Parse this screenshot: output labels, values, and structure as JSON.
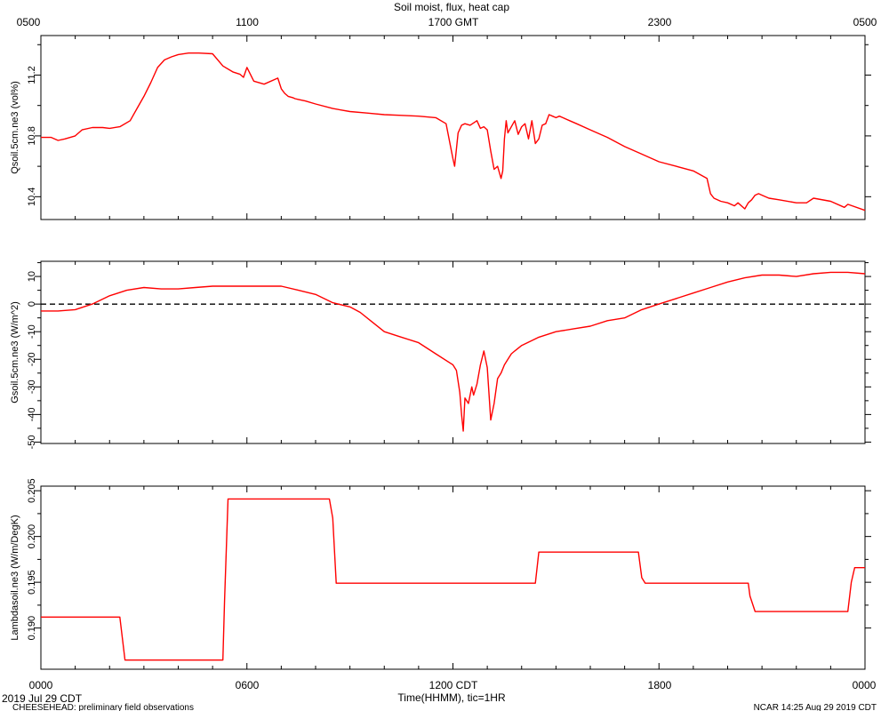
{
  "figure": {
    "top_title": "Soil moist, flux, heat cap",
    "top_ticks": [
      "0500",
      "1100",
      "1700 GMT",
      "2300",
      "0500"
    ],
    "bottom_ticks": [
      "0000",
      "0600",
      "1200 CDT",
      "1800",
      "0000"
    ],
    "xlabel": "Time(HHMM), tic=1HR",
    "date_label": "2019 Jul 29 CDT",
    "footer_left": "CHEESEHEAD: preliminary field observations",
    "footer_right": "NCAR 14:25 Aug 29 2019 CDT",
    "line_color": "#ff0000"
  },
  "chart_data": [
    {
      "type": "line",
      "ylabel": "Qsoil.5cm.ne3 (vol%)",
      "xlim": [
        0,
        24
      ],
      "ylim": [
        10.25,
        11.46
      ],
      "yticks": [
        10.4,
        10.8,
        11.2
      ],
      "ytick_labels": [
        "10.4",
        "10.8",
        "11.2"
      ],
      "series": [
        {
          "x": [
            0,
            0.3,
            0.5,
            0.7,
            1,
            1.2,
            1.5,
            1.8,
            2,
            2.3,
            2.6,
            2.8,
            3,
            3.2,
            3.4,
            3.6,
            3.8,
            4,
            4.3,
            4.6,
            5,
            5.3,
            5.6,
            5.8,
            5.9,
            6,
            6.2,
            6.5,
            6.9,
            7.0,
            7.1,
            7.2,
            7.35,
            7.4,
            7.5,
            7.7,
            8,
            8.5,
            9,
            9.5,
            10,
            10.5,
            11,
            11.5,
            11.8,
            12.0,
            12.05,
            12.15,
            12.25,
            12.35,
            12.5,
            12.7,
            12.8,
            12.9,
            13.0,
            13.1,
            13.2,
            13.3,
            13.4,
            13.45,
            13.5,
            13.55,
            13.6,
            13.8,
            13.9,
            14.0,
            14.1,
            14.2,
            14.3,
            14.4,
            14.5,
            14.6,
            14.7,
            14.8,
            14.9,
            15.0,
            15.1,
            15.2,
            15.4,
            15.6,
            16,
            16.5,
            17,
            17.5,
            18,
            18.5,
            19,
            19.4,
            19.5,
            19.6,
            19.8,
            20,
            20.2,
            20.3,
            20.5,
            20.6,
            20.7,
            20.8,
            20.9,
            21,
            21.2,
            21.5,
            22,
            22.3,
            22.5,
            23,
            23.4,
            23.5,
            24
          ],
          "y": [
            10.79,
            10.79,
            10.77,
            10.78,
            10.8,
            10.84,
            10.855,
            10.855,
            10.85,
            10.86,
            10.9,
            10.98,
            11.06,
            11.15,
            11.25,
            11.3,
            11.32,
            11.335,
            11.345,
            11.345,
            11.34,
            11.26,
            11.22,
            11.205,
            11.185,
            11.25,
            11.16,
            11.14,
            11.18,
            11.11,
            11.08,
            11.06,
            11.05,
            11.045,
            11.04,
            11.03,
            11.01,
            10.98,
            10.96,
            10.95,
            10.94,
            10.935,
            10.93,
            10.92,
            10.88,
            10.65,
            10.6,
            10.82,
            10.87,
            10.88,
            10.87,
            10.9,
            10.85,
            10.86,
            10.84,
            10.7,
            10.58,
            10.6,
            10.52,
            10.57,
            10.78,
            10.9,
            10.82,
            10.9,
            10.81,
            10.86,
            10.88,
            10.78,
            10.9,
            10.75,
            10.78,
            10.87,
            10.88,
            10.94,
            10.93,
            10.92,
            10.93,
            10.92,
            10.9,
            10.88,
            10.84,
            10.79,
            10.73,
            10.68,
            10.63,
            10.6,
            10.57,
            10.52,
            10.42,
            10.39,
            10.37,
            10.36,
            10.34,
            10.36,
            10.32,
            10.36,
            10.38,
            10.41,
            10.42,
            10.41,
            10.39,
            10.38,
            10.36,
            10.36,
            10.39,
            10.37,
            10.33,
            10.35,
            10.31
          ],
          "color": "#ff0000"
        }
      ]
    },
    {
      "type": "line",
      "ylabel": "Gsoil.5cm.ne3 (W/m^2)",
      "xlim": [
        0,
        24
      ],
      "ylim": [
        -50.5,
        15.5
      ],
      "yticks": [
        -50,
        -40,
        -30,
        -20,
        -10,
        0,
        10
      ],
      "ytick_labels": [
        "-50",
        "-40",
        "-30",
        "-20",
        "-10",
        "0",
        "10"
      ],
      "zero_line": true,
      "series": [
        {
          "x": [
            0,
            0.5,
            1,
            1.5,
            2,
            2.5,
            3,
            3.5,
            4,
            4.5,
            5,
            5.5,
            6,
            6.5,
            7,
            7.5,
            8,
            8.5,
            9,
            9.3,
            9.6,
            10,
            10.5,
            11,
            11.5,
            12,
            12.1,
            12.2,
            12.25,
            12.3,
            12.35,
            12.45,
            12.55,
            12.6,
            12.7,
            12.8,
            12.9,
            13.0,
            13.1,
            13.2,
            13.3,
            13.4,
            13.5,
            13.6,
            13.7,
            13.8,
            14,
            14.5,
            15,
            15.5,
            16,
            16.5,
            17,
            17.5,
            18,
            18.5,
            19,
            19.5,
            20,
            20.5,
            21,
            21.5,
            22,
            22.5,
            23,
            23.5,
            24
          ],
          "y": [
            -2.5,
            -2.5,
            -2,
            0,
            3,
            5,
            6,
            5.5,
            5.5,
            6,
            6.5,
            6.5,
            6.5,
            6.5,
            6.5,
            5,
            3.5,
            0.5,
            -1,
            -3,
            -6,
            -10,
            -12,
            -14,
            -18,
            -22,
            -24,
            -32,
            -40,
            -46,
            -34,
            -36,
            -30,
            -33,
            -29,
            -22,
            -17,
            -23,
            -42,
            -36,
            -27,
            -25,
            -22,
            -20,
            -18,
            -17,
            -15,
            -12,
            -10,
            -9,
            -8,
            -6,
            -5,
            -2,
            0,
            2,
            4,
            6,
            8,
            9.5,
            10.5,
            10.5,
            10,
            11,
            11.5,
            11.5,
            11
          ],
          "color": "#ff0000"
        }
      ]
    },
    {
      "type": "line",
      "ylabel": "Lambdasoil.ne3 (W/m/DegK)",
      "xlim": [
        0,
        24
      ],
      "ylim": [
        0.1855,
        0.2055
      ],
      "yticks": [
        0.19,
        0.195,
        0.2,
        0.205
      ],
      "ytick_labels": [
        "0.190",
        "0.195",
        "0.200",
        "0.205"
      ],
      "series": [
        {
          "x": [
            0,
            2.3,
            2.45,
            5.3,
            5.35,
            5.45,
            8.4,
            8.5,
            8.6,
            14.4,
            14.5,
            17.4,
            17.5,
            17.6,
            20.6,
            20.65,
            20.8,
            23.5,
            23.6,
            23.7,
            24
          ],
          "y": [
            0.1912,
            0.1912,
            0.1865,
            0.1865,
            0.193,
            0.2041,
            0.2041,
            0.202,
            0.1949,
            0.1949,
            0.1983,
            0.1983,
            0.1955,
            0.1949,
            0.1949,
            0.1935,
            0.1918,
            0.1918,
            0.195,
            0.1966,
            0.1966
          ],
          "color": "#ff0000"
        }
      ]
    }
  ]
}
